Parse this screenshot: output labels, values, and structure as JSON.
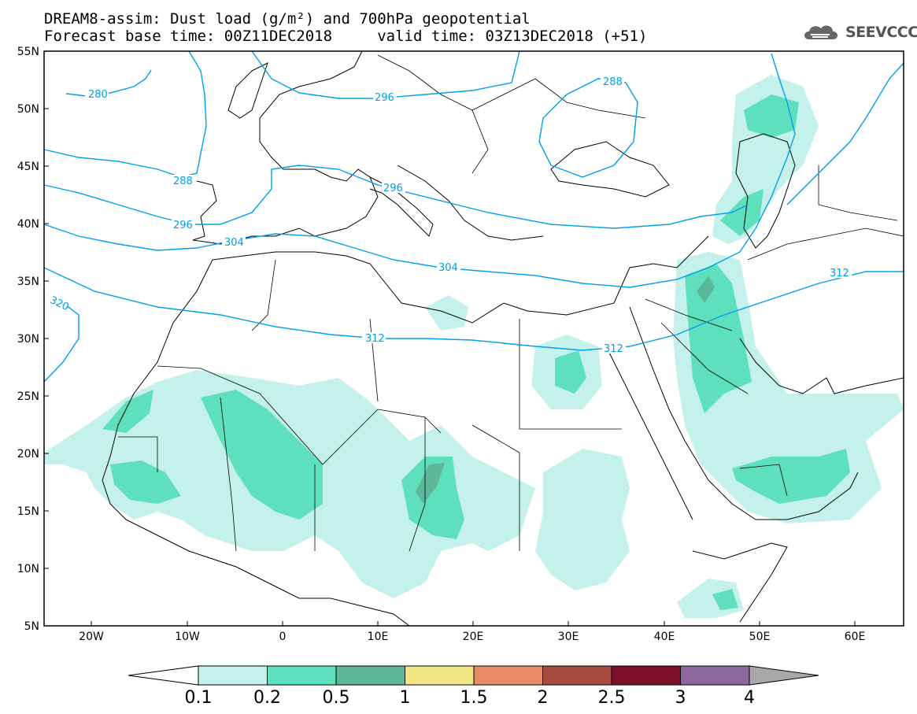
{
  "title": {
    "line1": "DREAM8-assim: Dust load (g/m²) and 700hPa geopotential",
    "line2": "Forecast base time: 00Z11DEC2018     valid time: 03Z13DEC2018 (+51)"
  },
  "logo": {
    "text": "SEEVCCC",
    "icon": "cloud-icon"
  },
  "map": {
    "lon_range": [
      -25,
      65
    ],
    "lat_range": [
      5,
      55
    ],
    "x_ticks": [
      "20W",
      "10W",
      "0",
      "10E",
      "20E",
      "30E",
      "40E",
      "50E",
      "60E"
    ],
    "y_ticks": [
      "55N",
      "50N",
      "45N",
      "40N",
      "35N",
      "30N",
      "25N",
      "20N",
      "15N",
      "10N",
      "5N"
    ],
    "contour_labels": [
      "280",
      "288",
      "296",
      "304",
      "312",
      "320",
      "288",
      "296",
      "296",
      "304",
      "312",
      "312"
    ]
  },
  "colorbar": {
    "labels": [
      "0.1",
      "0.2",
      "0.5",
      "1",
      "1.5",
      "2",
      "2.5",
      "3",
      "4"
    ],
    "colors": [
      "#c4f2ea",
      "#5fe0bc",
      "#5cb899",
      "#f3e684",
      "#e88b67",
      "#a84b3e",
      "#7b0f2a",
      "#8c689e"
    ],
    "end_color": "#a8a8a8"
  }
}
